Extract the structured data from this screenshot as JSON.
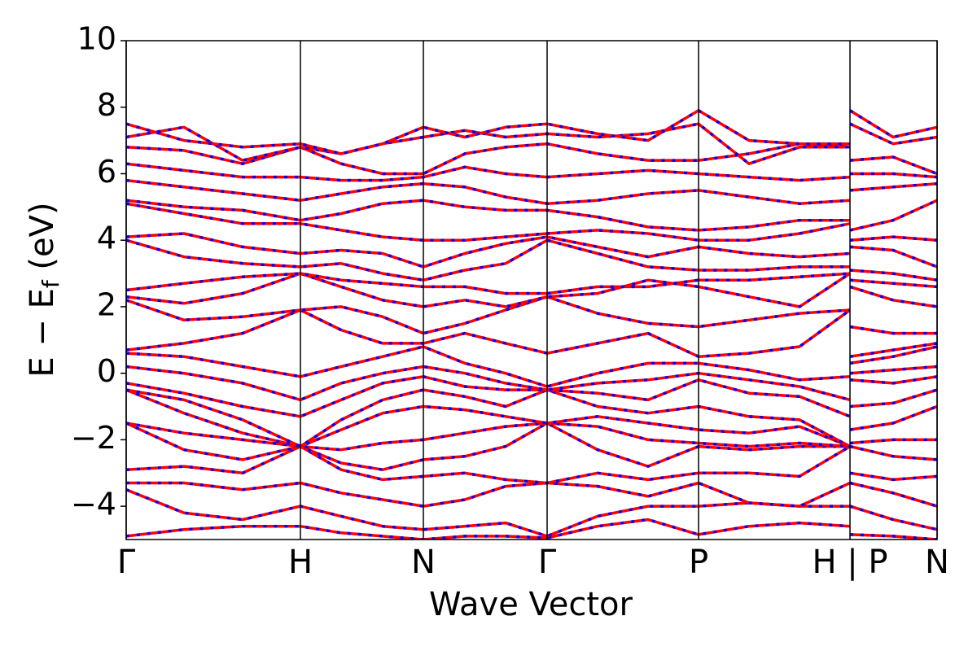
{
  "chart_data": {
    "type": "band_structure",
    "y_label": {
      "main": "E − E",
      "sub": "f",
      "unit": " (eV)"
    },
    "x_label": "Wave Vector",
    "xlim": [
      0,
      9.96
    ],
    "xticks": [
      {
        "value": 0,
        "label": "Γ"
      },
      {
        "value": 2.14,
        "label": "H"
      },
      {
        "value": 3.65,
        "label": "N"
      },
      {
        "value": 5.17,
        "label": "Γ"
      },
      {
        "value": 7.03,
        "label": "P"
      },
      {
        "value": 8.89,
        "label": "H | P"
      },
      {
        "value": 9.96,
        "label": "N"
      }
    ],
    "ylim": [
      -5,
      10
    ],
    "yticks": [
      {
        "value": -4,
        "label": "−4"
      },
      {
        "value": -2,
        "label": "−2"
      },
      0,
      2,
      4,
      6,
      8,
      10
    ],
    "line_color": "#ff0000",
    "dash_color": "#0000ff",
    "divider_color": "#000000",
    "x": [
      0,
      0.71,
      1.43,
      2.14,
      2.64,
      3.15,
      3.65,
      4.16,
      4.66,
      5.17,
      5.79,
      6.41,
      7.03,
      7.65,
      8.27,
      8.89,
      8.89,
      8.89,
      9.42,
      9.96
    ],
    "series": [
      {
        "values": [
          -4.9,
          -4.7,
          -4.6,
          -4.6,
          -4.8,
          -4.9,
          -5.0,
          -4.9,
          -4.9,
          -4.95,
          -4.6,
          -4.4,
          -4.85,
          -4.6,
          -4.5,
          -4.6,
          null,
          -4.85,
          -4.9,
          -5.0
        ]
      },
      {
        "values": [
          -3.5,
          -4.2,
          -4.4,
          -4.0,
          -4.3,
          -4.6,
          -4.7,
          -4.6,
          -4.5,
          -4.9,
          -4.3,
          -4.0,
          -4.0,
          -3.9,
          -4.0,
          -4.0,
          null,
          -4.0,
          -4.4,
          -4.7
        ]
      },
      {
        "values": [
          -3.3,
          -3.3,
          -3.5,
          -3.3,
          -3.6,
          -3.8,
          -4.0,
          -3.8,
          -3.4,
          -3.3,
          -3.4,
          -3.7,
          -3.3,
          -3.9,
          -4.0,
          -3.3,
          null,
          -3.3,
          -3.6,
          -4.0
        ]
      },
      {
        "values": [
          -2.9,
          -2.8,
          -3.0,
          -2.2,
          -2.9,
          -3.2,
          -3.1,
          -3.0,
          -3.2,
          -3.3,
          -3.0,
          -3.2,
          -3.0,
          -3.0,
          -3.1,
          -2.2,
          null,
          -3.0,
          -3.2,
          -3.1
        ]
      },
      {
        "values": [
          -1.5,
          -2.3,
          -2.6,
          -2.2,
          -2.7,
          -2.9,
          -2.6,
          -2.5,
          -2.2,
          -1.5,
          -2.3,
          -2.8,
          -2.2,
          -2.3,
          -2.2,
          -2.2,
          null,
          -2.2,
          -2.5,
          -2.6
        ]
      },
      {
        "values": [
          -1.5,
          -1.8,
          -2.0,
          -2.2,
          -2.3,
          -2.1,
          -2.0,
          -1.8,
          -1.6,
          -1.5,
          -1.6,
          -2.0,
          -2.1,
          -2.2,
          -2.1,
          -2.2,
          null,
          -2.1,
          -2.0,
          -2.0
        ]
      },
      {
        "values": [
          -0.5,
          -1.2,
          -1.8,
          -2.2,
          -1.7,
          -1.2,
          -1.0,
          -1.1,
          -1.3,
          -1.5,
          -1.3,
          -1.5,
          -1.7,
          -1.8,
          -1.6,
          -2.2,
          null,
          -1.7,
          -1.5,
          -1.0
        ]
      },
      {
        "values": [
          -0.5,
          -0.8,
          -1.4,
          -2.2,
          -1.4,
          -0.8,
          -0.5,
          -0.7,
          -1.0,
          -0.5,
          -1.0,
          -1.2,
          -1.0,
          -1.3,
          -1.4,
          -2.2,
          null,
          -1.0,
          -0.9,
          -0.5
        ]
      },
      {
        "values": [
          -0.3,
          -0.6,
          -1.0,
          -1.3,
          -0.8,
          -0.3,
          -0.1,
          -0.4,
          -0.5,
          -0.5,
          -0.6,
          -0.8,
          -0.2,
          -0.6,
          -0.7,
          -1.3,
          null,
          -0.2,
          -0.3,
          -0.1
        ]
      },
      {
        "values": [
          0.2,
          0.0,
          -0.3,
          -0.8,
          -0.3,
          0.0,
          0.2,
          0.0,
          -0.3,
          -0.5,
          -0.3,
          -0.2,
          0.0,
          -0.2,
          -0.4,
          -0.8,
          null,
          0.0,
          0.1,
          0.2
        ]
      },
      {
        "values": [
          0.6,
          0.5,
          0.2,
          -0.1,
          0.2,
          0.5,
          0.8,
          0.3,
          0.0,
          -0.4,
          0.0,
          0.3,
          0.3,
          0.1,
          -0.2,
          -0.1,
          null,
          0.3,
          0.5,
          0.8
        ]
      },
      {
        "values": [
          0.7,
          0.9,
          1.2,
          1.9,
          1.3,
          0.9,
          0.9,
          1.2,
          0.9,
          0.6,
          0.9,
          1.2,
          0.5,
          0.6,
          0.8,
          1.9,
          null,
          0.5,
          0.7,
          0.9
        ]
      },
      {
        "values": [
          2.2,
          1.6,
          1.7,
          1.9,
          2.0,
          1.7,
          1.2,
          1.5,
          1.9,
          2.3,
          1.8,
          1.5,
          1.4,
          1.6,
          1.8,
          1.9,
          null,
          1.4,
          1.2,
          1.2
        ]
      },
      {
        "values": [
          2.3,
          2.1,
          2.4,
          3.0,
          2.6,
          2.2,
          2.0,
          2.2,
          2.0,
          2.3,
          2.4,
          2.8,
          2.6,
          2.3,
          2.0,
          3.0,
          null,
          2.6,
          2.2,
          2.0
        ]
      },
      {
        "values": [
          2.5,
          2.7,
          2.9,
          3.0,
          2.8,
          2.7,
          2.6,
          2.6,
          2.4,
          2.4,
          2.6,
          2.6,
          2.8,
          2.8,
          2.9,
          3.0,
          null,
          2.8,
          2.7,
          2.6
        ]
      },
      {
        "values": [
          4.0,
          3.5,
          3.3,
          3.2,
          3.3,
          3.0,
          2.8,
          3.1,
          3.3,
          4.0,
          3.6,
          3.2,
          3.1,
          3.1,
          3.2,
          3.2,
          null,
          3.1,
          3.0,
          2.8
        ]
      },
      {
        "values": [
          4.1,
          4.2,
          3.8,
          3.6,
          3.7,
          3.6,
          3.2,
          3.6,
          3.9,
          4.1,
          3.8,
          3.5,
          3.8,
          3.6,
          3.5,
          3.6,
          null,
          3.8,
          3.7,
          3.2
        ]
      },
      {
        "values": [
          5.1,
          4.8,
          4.5,
          4.5,
          4.3,
          4.1,
          4.0,
          4.0,
          4.1,
          4.2,
          4.3,
          4.2,
          4.0,
          4.0,
          4.2,
          4.5,
          null,
          4.0,
          4.1,
          4.0
        ]
      },
      {
        "values": [
          5.2,
          5.0,
          4.9,
          4.6,
          4.8,
          5.1,
          5.2,
          5.0,
          4.9,
          4.9,
          4.7,
          4.4,
          4.3,
          4.4,
          4.6,
          4.6,
          null,
          4.3,
          4.6,
          5.2
        ]
      },
      {
        "values": [
          5.8,
          5.6,
          5.4,
          5.2,
          5.4,
          5.6,
          5.7,
          5.6,
          5.3,
          5.1,
          5.2,
          5.4,
          5.5,
          5.3,
          5.1,
          5.2,
          null,
          5.5,
          5.6,
          5.7
        ]
      },
      {
        "values": [
          6.3,
          6.1,
          5.9,
          5.9,
          5.8,
          5.8,
          5.9,
          6.2,
          6.0,
          5.9,
          6.0,
          6.1,
          6.0,
          5.9,
          5.8,
          5.9,
          null,
          6.0,
          6.0,
          5.9
        ]
      },
      {
        "values": [
          6.8,
          6.7,
          6.3,
          6.8,
          6.3,
          6.0,
          6.0,
          6.6,
          6.8,
          6.9,
          6.6,
          6.4,
          6.4,
          6.6,
          6.9,
          6.8,
          null,
          6.4,
          6.5,
          6.0
        ]
      },
      {
        "values": [
          7.1,
          7.4,
          6.4,
          6.8,
          6.6,
          6.9,
          7.1,
          7.3,
          7.1,
          7.2,
          7.1,
          7.2,
          7.5,
          6.3,
          6.8,
          6.8,
          null,
          7.5,
          6.9,
          7.1
        ]
      },
      {
        "values": [
          7.5,
          7.0,
          6.8,
          6.9,
          6.6,
          6.9,
          7.4,
          7.1,
          7.4,
          7.5,
          7.2,
          7.0,
          7.9,
          7.0,
          6.9,
          6.9,
          null,
          7.9,
          7.1,
          7.4
        ]
      }
    ]
  }
}
